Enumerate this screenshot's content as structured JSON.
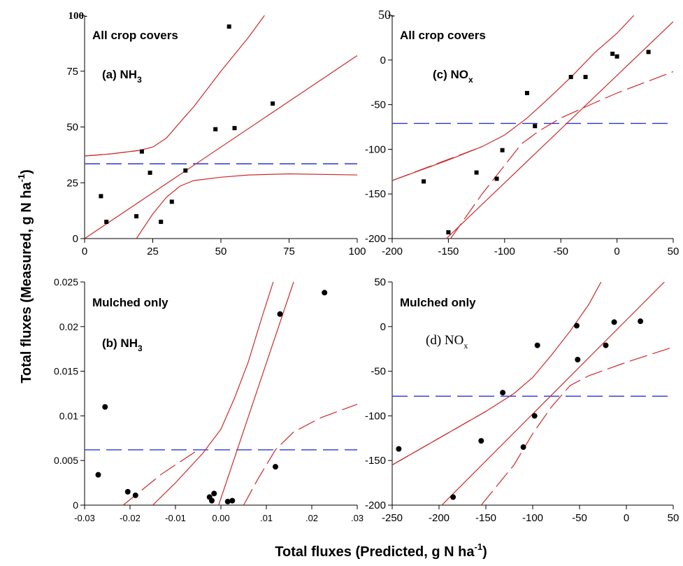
{
  "xlabel": "Total fluxes (Predicted, g N ha",
  "xlabel_sup": "-1",
  "xlabel_end": ")",
  "ylabel": "Total fluxes (Measured, g N ha",
  "ylabel_sup": "-1",
  "ylabel_end": ")",
  "colors": {
    "point": "#000000",
    "fit": "#cc2a2a",
    "mean": "#2a35d8",
    "axis": "#000000"
  },
  "chart_data": [
    {
      "id": "a",
      "type": "scatter",
      "title": "All crop covers",
      "label_main": "(a) NH",
      "label_sub": "3",
      "xlim": [
        0,
        100
      ],
      "ylim": [
        0,
        100
      ],
      "xticks": [
        0,
        25,
        50,
        75,
        100
      ],
      "xtick_labels": [
        "0",
        "25",
        "50",
        "75",
        "100"
      ],
      "yticks": [
        0,
        25,
        50,
        75,
        100
      ],
      "ytick_labels": [
        "0",
        "25",
        "50",
        "75",
        "100-"
      ],
      "marker": "square",
      "points": [
        [
          6,
          19
        ],
        [
          8,
          7.5
        ],
        [
          19,
          10
        ],
        [
          21,
          39
        ],
        [
          24,
          29.5
        ],
        [
          28,
          7.5
        ],
        [
          32,
          16.5
        ],
        [
          37,
          30.5
        ],
        [
          48,
          49
        ],
        [
          53,
          95
        ],
        [
          55,
          49.5
        ],
        [
          69,
          60.5
        ]
      ],
      "fit": [
        [
          0,
          0
        ],
        [
          100,
          82
        ]
      ],
      "band_upper": [
        [
          0,
          37
        ],
        [
          10,
          38
        ],
        [
          20,
          39.5
        ],
        [
          25,
          41
        ],
        [
          30,
          45
        ],
        [
          36,
          53.5
        ],
        [
          40,
          59
        ],
        [
          50,
          75
        ],
        [
          60,
          90
        ],
        [
          66,
          100
        ]
      ],
      "band_lower": [
        [
          19,
          0
        ],
        [
          25,
          11
        ],
        [
          30,
          18.5
        ],
        [
          35,
          23.5
        ],
        [
          40,
          26
        ],
        [
          50,
          27.5
        ],
        [
          60,
          28.5
        ],
        [
          75,
          29
        ],
        [
          100,
          28.5
        ]
      ],
      "mean_line": 33.5
    },
    {
      "id": "b",
      "type": "scatter",
      "title": "Mulched only",
      "label_main": "(b) NH",
      "label_sub": "3",
      "xlim": [
        -0.03,
        0.03
      ],
      "ylim": [
        0,
        0.025
      ],
      "xticks": [
        -0.03,
        -0.02,
        -0.01,
        0,
        0.01,
        0.02,
        0.03
      ],
      "xtick_labels": [
        "-0.03",
        "-0.02",
        "-0.01",
        "0.00",
        ".01",
        ".02",
        ".03"
      ],
      "yticks": [
        0,
        0.005,
        0.01,
        0.015,
        0.02,
        0.025
      ],
      "ytick_labels": [
        "0",
        "0.005",
        "0.01",
        "0.015",
        "0.02",
        "0.025"
      ],
      "marker": "circle",
      "points": [
        [
          -0.027,
          0.0034
        ],
        [
          -0.0255,
          0.011
        ],
        [
          -0.0205,
          0.0015
        ],
        [
          -0.0188,
          0.0011
        ],
        [
          -0.0025,
          0.0009
        ],
        [
          -0.002,
          0.0005
        ],
        [
          -0.0015,
          0.0013
        ],
        [
          0.0015,
          0.0004
        ],
        [
          0.0025,
          0.0005
        ],
        [
          0.012,
          0.0043
        ],
        [
          0.013,
          0.0214
        ],
        [
          0.0228,
          0.0238
        ]
      ],
      "fit": [
        [
          -0.0005,
          0
        ],
        [
          0.016,
          0.025
        ]
      ],
      "band_upper": [
        [
          -0.015,
          0
        ],
        [
          -0.01,
          0.0025
        ],
        [
          -0.004,
          0.0058
        ],
        [
          0,
          0.0085
        ],
        [
          0.003,
          0.012
        ],
        [
          0.006,
          0.016
        ],
        [
          0.009,
          0.021
        ],
        [
          0.0115,
          0.025
        ]
      ],
      "band_lower": [
        [
          0.005,
          0
        ],
        [
          0.008,
          0.0028
        ],
        [
          0.012,
          0.0062
        ],
        [
          0.016,
          0.0082
        ],
        [
          0.022,
          0.0098
        ],
        [
          0.03,
          0.0113
        ]
      ],
      "band_lower2": [
        [
          -0.0215,
          0
        ],
        [
          -0.013,
          0.0035
        ],
        [
          -0.005,
          0.0062
        ]
      ],
      "mean_line": 0.0062
    },
    {
      "id": "c",
      "type": "scatter",
      "title": "All crop covers",
      "label_main": "(c) NO",
      "label_sub": "x",
      "xlim": [
        -200,
        50
      ],
      "ylim": [
        -200,
        50
      ],
      "xticks": [
        -200,
        -150,
        -100,
        -50,
        0,
        50
      ],
      "xtick_labels": [
        "-200",
        "-150",
        "-100",
        "-50",
        "0",
        "50"
      ],
      "yticks": [
        -200,
        -150,
        -100,
        -50,
        0,
        50
      ],
      "ytick_labels": [
        "-200",
        "-150",
        "-100",
        "-50",
        "0",
        "50-"
      ],
      "marker": "square",
      "points": [
        [
          -172,
          -136
        ],
        [
          -150,
          -193
        ],
        [
          -125,
          -126
        ],
        [
          -107,
          -133
        ],
        [
          -102,
          -101
        ],
        [
          -80,
          -37
        ],
        [
          -73,
          -74
        ],
        [
          -41,
          -19
        ],
        [
          -28,
          -19
        ],
        [
          -4,
          7
        ],
        [
          0,
          4
        ],
        [
          28,
          9
        ]
      ],
      "fit": [
        [
          -200,
          -258
        ],
        [
          50,
          43
        ]
      ],
      "band_upper": [
        [
          -200,
          -135
        ],
        [
          -150,
          -112
        ],
        [
          -120,
          -97
        ],
        [
          -100,
          -84
        ],
        [
          -80,
          -65
        ],
        [
          -60,
          -42
        ],
        [
          -40,
          -18
        ],
        [
          -20,
          8
        ],
        [
          0,
          30
        ],
        [
          15,
          50
        ]
      ],
      "band_lower": [
        [
          -148,
          -200
        ],
        [
          -120,
          -150
        ],
        [
          -100,
          -118
        ],
        [
          -85,
          -94
        ],
        [
          -70,
          -80
        ],
        [
          -50,
          -65
        ],
        [
          -20,
          -48
        ],
        [
          0,
          -37
        ],
        [
          25,
          -25
        ],
        [
          50,
          -13
        ]
      ],
      "mean_line": -71
    },
    {
      "id": "d",
      "type": "scatter",
      "title": "Mulched only",
      "label_main": "(d) NO",
      "label_sub": "x",
      "xlim": [
        -250,
        50
      ],
      "ylim": [
        -200,
        50
      ],
      "xticks": [
        -250,
        -200,
        -150,
        -100,
        -50,
        0,
        50
      ],
      "xtick_labels": [
        "-250",
        "-200",
        "-150",
        "-100",
        "-50",
        "0",
        "50"
      ],
      "yticks": [
        -200,
        -150,
        -100,
        -50,
        0,
        50
      ],
      "ytick_labels": [
        "-200",
        "-150",
        "-100",
        "-50",
        "0",
        "50"
      ],
      "marker": "circle",
      "points": [
        [
          -243,
          -137
        ],
        [
          -185,
          -191
        ],
        [
          -155,
          -128
        ],
        [
          -132,
          -74
        ],
        [
          -110,
          -135
        ],
        [
          -98,
          -100
        ],
        [
          -95,
          -21
        ],
        [
          -53,
          1
        ],
        [
          -52,
          -37
        ],
        [
          -22,
          -21
        ],
        [
          -13,
          5
        ],
        [
          15,
          6
        ]
      ],
      "fit": [
        [
          -197,
          -200
        ],
        [
          50,
          60
        ]
      ],
      "band_upper": [
        [
          -250,
          -155
        ],
        [
          -200,
          -125
        ],
        [
          -150,
          -95
        ],
        [
          -120,
          -75
        ],
        [
          -100,
          -57
        ],
        [
          -80,
          -32
        ],
        [
          -60,
          -5
        ],
        [
          -40,
          25
        ],
        [
          -27,
          50
        ]
      ],
      "band_lower": [
        [
          -155,
          -200
        ],
        [
          -120,
          -155
        ],
        [
          -100,
          -120
        ],
        [
          -80,
          -90
        ],
        [
          -60,
          -66
        ],
        [
          -40,
          -55
        ],
        [
          0,
          -40
        ],
        [
          50,
          -23
        ]
      ],
      "mean_line": -78
    }
  ]
}
